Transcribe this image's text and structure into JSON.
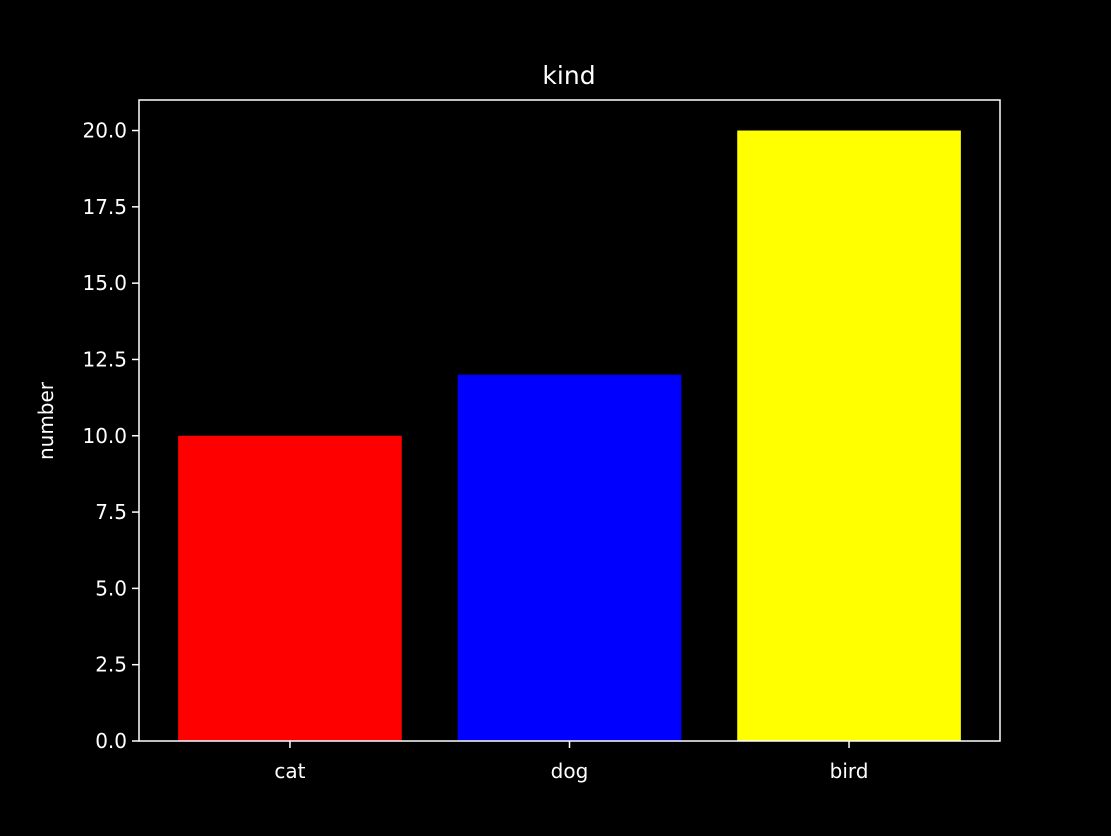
{
  "colors": {
    "background": "#000000",
    "axes": "#ffffff",
    "text": "#ffffff"
  },
  "chart_data": {
    "type": "bar",
    "title": "kind",
    "xlabel": "",
    "ylabel": "number",
    "categories": [
      "cat",
      "dog",
      "bird"
    ],
    "values": [
      10,
      12,
      20
    ],
    "bar_colors": [
      "#ff0000",
      "#0000ff",
      "#ffff00"
    ],
    "ylim": [
      0,
      21
    ],
    "yticks": [
      0,
      2.5,
      5,
      7.5,
      10,
      12.5,
      15,
      17.5,
      20
    ],
    "ytick_labels": [
      "0.0",
      "2.5",
      "5.0",
      "7.5",
      "10.0",
      "12.5",
      "15.0",
      "17.5",
      "20.0"
    ],
    "grid": false,
    "legend": "none"
  }
}
